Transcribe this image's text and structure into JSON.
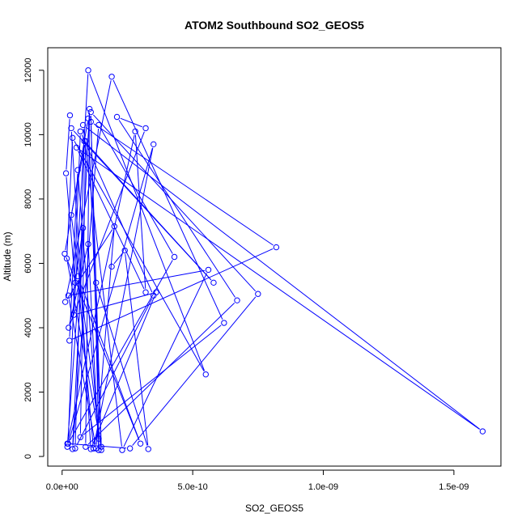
{
  "chart_data": {
    "type": "line",
    "title": "ATOM2 Southbound SO2_GEOS5",
    "xlabel": "SO2_GEOS5",
    "ylabel": "Altitude (m)",
    "xlim": [
      -5.5e-11,
      1.68e-09
    ],
    "ylim": [
      -300,
      12700
    ],
    "x_ticks": [
      {
        "value": 0,
        "label": "0.0e+00"
      },
      {
        "value": 5e-10,
        "label": "5.0e-10"
      },
      {
        "value": 1e-09,
        "label": "1.0e-09"
      },
      {
        "value": 1.5e-09,
        "label": "1.5e-09"
      }
    ],
    "y_ticks": [
      {
        "value": 0,
        "label": "0"
      },
      {
        "value": 2000,
        "label": "2000"
      },
      {
        "value": 4000,
        "label": "4000"
      },
      {
        "value": 6000,
        "label": "6000"
      },
      {
        "value": 8000,
        "label": "8000"
      },
      {
        "value": 10000,
        "label": "10000"
      },
      {
        "value": 12000,
        "label": "12000"
      }
    ],
    "grid": false,
    "legend": "none",
    "colors": {
      "series": "#0000ff",
      "axis": "#000000",
      "background": "#ffffff"
    },
    "series": [
      {
        "x": [
          3e-11,
          1.5e-11,
          5e-11,
          8e-11,
          2e-11,
          3.5e-10,
          1.2e-10,
          6e-11,
          3e-10,
          1e-11,
          1e-10,
          1.5e-10,
          3.5e-11,
          9e-11,
          7e-11,
          6.2e-10,
          1.9e-10,
          1.2e-11,
          2e-10,
          1.3e-10,
          2.4e-11,
          5.6e-10,
          2.3e-10,
          8e-11,
          1.61e-09,
          5.5e-11,
          3.2e-10,
          2.8e-10,
          2e-11,
          2.6e-10,
          7.5e-10,
          1.1e-10,
          1.4e-10,
          6e-11,
          2.8e-11,
          8.2e-10,
          1.1e-10,
          1.5e-10,
          1.8e-11,
          4e-11,
          5.5e-10,
          1e-10,
          4.5e-11,
          3.6e-10,
          1.1e-10,
          3.5e-11,
          5.8e-10,
          8.5e-11,
          5e-11,
          3.5e-10,
          7e-11,
          2.3e-11,
          4.3e-10,
          1.4e-10,
          4e-11,
          1.05e-10,
          9e-11,
          6.7e-10,
          2.1e-10,
          3.2e-10,
          2.5e-11,
          1e-10,
          1.4e-10,
          1.3e-10,
          3.3e-10,
          2.4e-10,
          1.9e-10
        ],
        "y": [
          10600,
          8800,
          5400,
          7100,
          300,
          9700,
          250,
          5600,
          400,
          6300,
          10500,
          200,
          7500,
          9800,
          600,
          4150,
          11800,
          4800,
          7150,
          250,
          5000,
          5800,
          200,
          10300,
          780,
          9600,
          5100,
          10100,
          400,
          250,
          5050,
          10700,
          550,
          8900,
          3600,
          6500,
          10400,
          300,
          6150,
          9900,
          2550,
          12000,
          4400,
          5100,
          230,
          10200,
          5400,
          9800,
          250,
          5000,
          10100,
          400,
          6200,
          10300,
          230,
          10800,
          300,
          4850,
          10550,
          10200,
          4000,
          6600,
          200,
          5400,
          230,
          6400,
          5900
        ]
      }
    ]
  }
}
